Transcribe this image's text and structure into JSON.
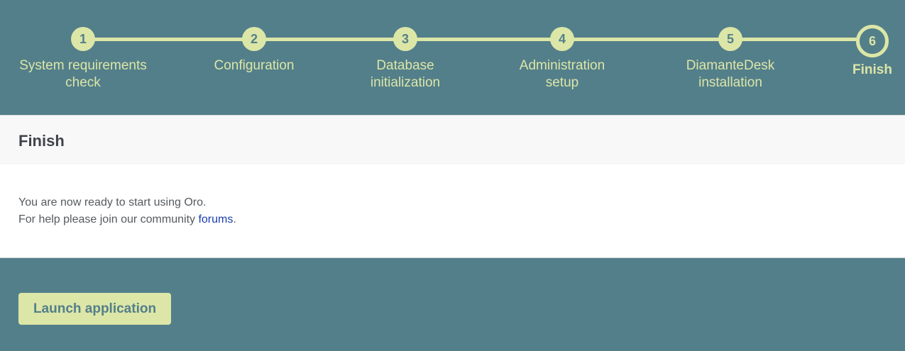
{
  "stepper": {
    "steps": [
      {
        "number": "1",
        "label_line1": "System requirements",
        "label_line2": "check"
      },
      {
        "number": "2",
        "label_line1": "Configuration",
        "label_line2": ""
      },
      {
        "number": "3",
        "label_line1": "Database",
        "label_line2": "initialization"
      },
      {
        "number": "4",
        "label_line1": "Administration",
        "label_line2": "setup"
      },
      {
        "number": "5",
        "label_line1": "DiamanteDesk",
        "label_line2": "installation"
      },
      {
        "number": "6",
        "label_line1": "Finish",
        "label_line2": ""
      }
    ],
    "current_step": 6
  },
  "panel": {
    "title": "Finish",
    "line1": "You are now ready to start using Oro.",
    "line2_prefix": "For help please join our community ",
    "link_text": "forums",
    "line2_suffix": "."
  },
  "footer": {
    "launch_label": "Launch application"
  },
  "colors": {
    "background": "#537f8a",
    "accent": "#dce6a7",
    "link": "#1a3db0"
  }
}
